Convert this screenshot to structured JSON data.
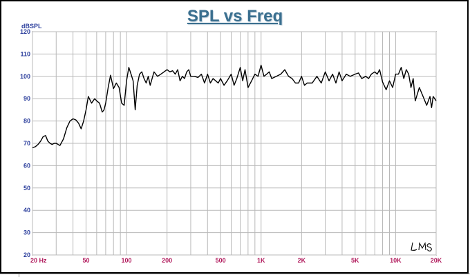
{
  "chart_data": {
    "type": "line",
    "title": "SPL vs Freq",
    "ylabel": "dBSPL",
    "xlabel": "",
    "x_scale": "log",
    "xlim": [
      20,
      20000
    ],
    "ylim": [
      20,
      120
    ],
    "grid": true,
    "y_ticks": [
      20,
      30,
      40,
      50,
      60,
      70,
      80,
      90,
      100,
      110,
      120
    ],
    "x_tick_labels": [
      {
        "value": 20,
        "label": "20  Hz"
      },
      {
        "value": 50,
        "label": "50"
      },
      {
        "value": 100,
        "label": "100"
      },
      {
        "value": 200,
        "label": "200"
      },
      {
        "value": 500,
        "label": "500"
      },
      {
        "value": 1000,
        "label": "1K"
      },
      {
        "value": 2000,
        "label": "2K"
      },
      {
        "value": 5000,
        "label": "5K"
      },
      {
        "value": 10000,
        "label": "10K"
      },
      {
        "value": 20000,
        "label": "20K"
      }
    ],
    "line_color": "#000000",
    "series": [
      {
        "x": [
          20,
          21,
          22,
          23,
          24,
          25,
          26,
          27,
          28,
          29,
          30,
          32,
          34,
          36,
          38,
          40,
          42,
          44,
          46,
          48,
          50,
          52,
          55,
          58,
          60,
          63,
          66,
          68,
          70,
          73,
          76,
          80,
          84,
          88,
          92,
          96,
          100,
          104,
          108,
          112,
          116,
          120,
          125,
          130,
          135,
          140,
          145,
          150,
          160,
          170,
          180,
          190,
          200,
          210,
          220,
          230,
          240,
          250,
          260,
          270,
          280,
          290,
          300,
          320,
          340,
          360,
          380,
          400,
          420,
          440,
          460,
          480,
          500,
          530,
          560,
          600,
          630,
          660,
          700,
          730,
          760,
          800,
          850,
          900,
          950,
          1000,
          1050,
          1100,
          1150,
          1200,
          1300,
          1400,
          1500,
          1600,
          1700,
          1800,
          1900,
          2000,
          2100,
          2200,
          2400,
          2600,
          2800,
          3000,
          3200,
          3400,
          3600,
          3800,
          4000,
          4300,
          4600,
          5000,
          5300,
          5600,
          6000,
          6300,
          6600,
          7000,
          7300,
          7600,
          8000,
          8500,
          9000,
          9500,
          10000,
          10500,
          11000,
          11500,
          12000,
          12500,
          13000,
          13500,
          14000,
          15000,
          16000,
          17000,
          18000,
          18500,
          19000,
          19500,
          20000
        ],
        "y": [
          68,
          68.5,
          69.5,
          71,
          73,
          73.5,
          71,
          70,
          69.5,
          70,
          70,
          69,
          72,
          77,
          80,
          81,
          80.5,
          79,
          76.5,
          80,
          85,
          91,
          88,
          90,
          89,
          88,
          84,
          85,
          88,
          95,
          100.5,
          94.5,
          97,
          95,
          88,
          87,
          98,
          104,
          101,
          98,
          85,
          96,
          101,
          102,
          99,
          97,
          100,
          96,
          102,
          100,
          101,
          102,
          103,
          102,
          102.5,
          101,
          103,
          98,
          100,
          99,
          102,
          103,
          100,
          100,
          99.5,
          101,
          97,
          101,
          97,
          99,
          98,
          97,
          99,
          96,
          98,
          101,
          96,
          99,
          104,
          98,
          103,
          95,
          98,
          101,
          100,
          105,
          100,
          101,
          102,
          99,
          100,
          101,
          103,
          100,
          99,
          97,
          97,
          100,
          96,
          97,
          97,
          100,
          97,
          102,
          98,
          101,
          97,
          102,
          98,
          101,
          100,
          101,
          101.5,
          99,
          100,
          99,
          101,
          102,
          101,
          103,
          97.5,
          94,
          98,
          95,
          101,
          101,
          104,
          99,
          103,
          101,
          95,
          99,
          89,
          95,
          91,
          87,
          91,
          86,
          91,
          90,
          89
        ]
      }
    ]
  },
  "signature": "LMS"
}
